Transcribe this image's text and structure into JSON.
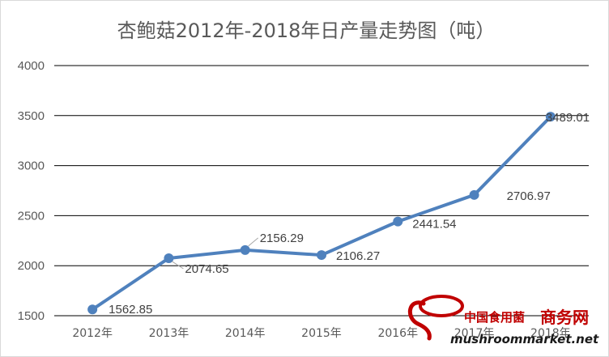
{
  "chart_data": {
    "type": "line",
    "title": "杏鲍菇2012年-2018年日产量走势图（吨）",
    "categories": [
      "2012年",
      "2013年",
      "2014年",
      "2015年",
      "2016年",
      "2017年",
      "2018年"
    ],
    "series": [
      {
        "values": [
          1562.85,
          2074.65,
          2156.29,
          2106.27,
          2441.54,
          2706.97,
          3489.01
        ]
      }
    ],
    "data_labels": [
      "1562.85",
      "2074.65",
      "2156.29",
      "2106.27",
      "2441.54",
      "2706.97",
      "3489.01"
    ],
    "ylim": [
      1500,
      4000
    ],
    "yticks": [
      1500,
      2000,
      2500,
      3000,
      3500,
      4000
    ],
    "grid": true,
    "line_color": "#4f81bd"
  },
  "watermark": {
    "cn_text": "中国食用菌",
    "cn_brand": "商务网",
    "en_text": "mushroommarket.net"
  }
}
